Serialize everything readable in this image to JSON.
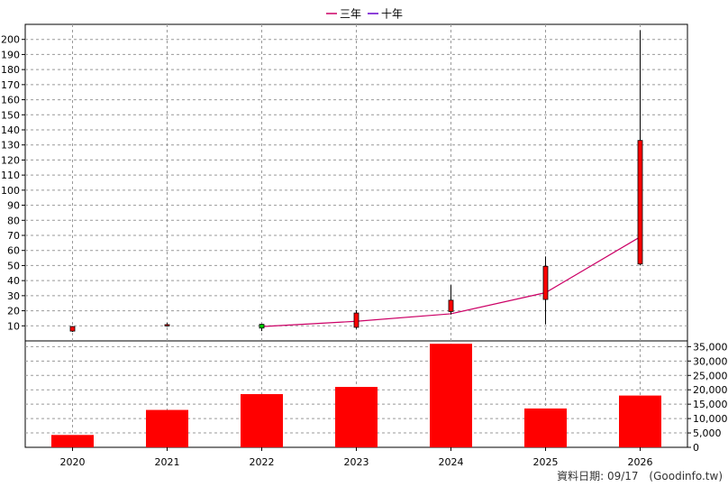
{
  "legend": [
    {
      "label": "三年",
      "color": "#cc0066"
    },
    {
      "label": "十年",
      "color": "#6600cc"
    }
  ],
  "footer": {
    "date_label": "資料日期: 09/17",
    "source": "(Goodinfo.tw)"
  },
  "chart_data": [
    {
      "type": "candlestick",
      "title": "",
      "categories": [
        "2020",
        "2021",
        "2022",
        "2023",
        "2024",
        "2025",
        "2026"
      ],
      "ylim": [
        0,
        210
      ],
      "yticks": [
        10,
        20,
        30,
        40,
        50,
        60,
        70,
        80,
        90,
        100,
        110,
        120,
        130,
        140,
        150,
        160,
        170,
        180,
        190,
        200
      ],
      "candles": [
        {
          "x": "2020",
          "open": 6.5,
          "close": 9.5,
          "high": 9.8,
          "low": 6.0,
          "color": "#ff0000"
        },
        {
          "x": "2021",
          "open": 10.5,
          "close": 10.8,
          "high": 11.8,
          "low": 9.5,
          "color": "#ff0000"
        },
        {
          "x": "2022",
          "open": 11.0,
          "close": 8.5,
          "high": 11.3,
          "low": 6.5,
          "color": "#00cc00"
        },
        {
          "x": "2023",
          "open": 9.0,
          "close": 18.5,
          "high": 20.5,
          "low": 8.0,
          "color": "#ff0000"
        },
        {
          "x": "2024",
          "open": 19.5,
          "close": 27.0,
          "high": 37.0,
          "low": 17.5,
          "color": "#ff0000"
        },
        {
          "x": "2025",
          "open": 27.5,
          "close": 49.5,
          "high": 56.0,
          "low": 11.0,
          "color": "#ff0000"
        },
        {
          "x": "2026",
          "open": 51.0,
          "close": 133.0,
          "high": 206.0,
          "low": 50.0,
          "color": "#ff0000"
        }
      ],
      "series": [
        {
          "name": "三年",
          "x": [
            "2022",
            "2023",
            "2024",
            "2025",
            "2026"
          ],
          "values": [
            9.5,
            13.0,
            18.0,
            32.0,
            69.0
          ],
          "color": "#cc0066"
        }
      ],
      "grid": true
    },
    {
      "type": "bar",
      "categories": [
        "2020",
        "2021",
        "2022",
        "2023",
        "2024",
        "2025",
        "2026"
      ],
      "values": [
        4300,
        13000,
        18500,
        21000,
        36000,
        13500,
        18000
      ],
      "color": "#ff0000",
      "ylim": [
        0,
        37000
      ],
      "yticks": [
        0,
        5000,
        10000,
        15000,
        20000,
        25000,
        30000,
        35000
      ],
      "ytick_labels": [
        "0",
        "5,000",
        "10,000",
        "15,000",
        "20,000",
        "25,000",
        "30,000",
        "35,000"
      ],
      "grid": true
    }
  ]
}
